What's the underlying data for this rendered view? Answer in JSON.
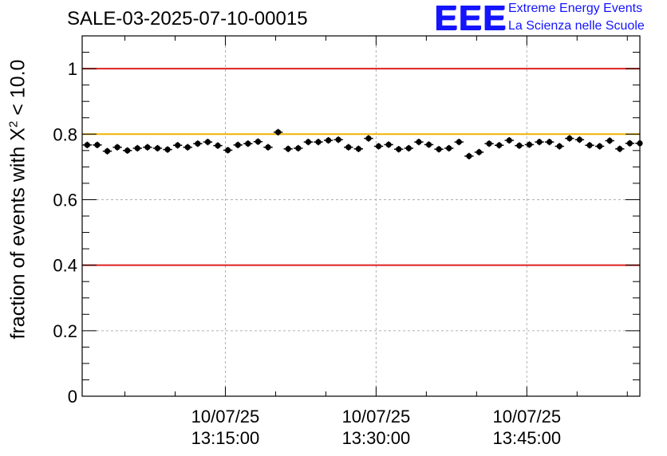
{
  "chart_data": {
    "type": "scatter",
    "title": "SALE-03-2025-07-10-00015",
    "ylabel_prefix": "fraction of events with ",
    "ylabel_symbol": "X",
    "ylabel_power": "2",
    "ylabel_suffix": " < 10.0",
    "xlabel": "",
    "ylim": [
      0,
      1.1
    ],
    "xlim_minutes": [
      0,
      55.5
    ],
    "y_ticks": [
      {
        "value": 0,
        "label": "0"
      },
      {
        "value": 0.2,
        "label": "0.2"
      },
      {
        "value": 0.4,
        "label": "0.4"
      },
      {
        "value": 0.6,
        "label": "0.6"
      },
      {
        "value": 0.8,
        "label": "0.8"
      },
      {
        "value": 1.0,
        "label": "1"
      }
    ],
    "x_ticks": [
      {
        "minute": 14.25,
        "date": "10/07/25",
        "time": "13:15:00"
      },
      {
        "minute": 29.25,
        "date": "10/07/25",
        "time": "13:30:00"
      },
      {
        "minute": 44.25,
        "date": "10/07/25",
        "time": "13:45:00"
      }
    ],
    "reference_lines": [
      {
        "y": 1.0,
        "color": "#e02020"
      },
      {
        "y": 0.8,
        "color": "#f2b400"
      },
      {
        "y": 0.4,
        "color": "#e02020"
      }
    ],
    "grid": true,
    "series": [
      {
        "name": "fraction",
        "color": "#000000",
        "x_minutes": [
          0.5,
          1.5,
          2.5,
          3.5,
          4.5,
          5.5,
          6.5,
          7.5,
          8.5,
          9.5,
          10.5,
          11.5,
          12.5,
          13.5,
          14.5,
          15.5,
          16.5,
          17.5,
          18.5,
          19.5,
          20.5,
          21.5,
          22.5,
          23.5,
          24.5,
          25.5,
          26.5,
          27.5,
          28.5,
          29.5,
          30.5,
          31.5,
          32.5,
          33.5,
          34.5,
          35.5,
          36.5,
          37.5,
          38.5,
          39.5,
          40.5,
          41.5,
          42.5,
          43.5,
          44.5,
          45.5,
          46.5,
          47.5,
          48.5,
          49.5,
          50.5,
          51.5,
          52.5,
          53.5,
          54.5,
          55.5
        ],
        "y": [
          0.767,
          0.767,
          0.748,
          0.76,
          0.75,
          0.757,
          0.76,
          0.757,
          0.753,
          0.766,
          0.76,
          0.771,
          0.776,
          0.765,
          0.751,
          0.767,
          0.771,
          0.777,
          0.76,
          0.806,
          0.755,
          0.757,
          0.776,
          0.776,
          0.781,
          0.783,
          0.76,
          0.755,
          0.787,
          0.763,
          0.768,
          0.754,
          0.757,
          0.776,
          0.768,
          0.754,
          0.757,
          0.776,
          0.733,
          0.745,
          0.771,
          0.766,
          0.781,
          0.765,
          0.768,
          0.776,
          0.776,
          0.763,
          0.787,
          0.783,
          0.766,
          0.763,
          0.78,
          0.755,
          0.772,
          0.772
        ],
        "y_error": 0.01
      }
    ]
  },
  "logo": {
    "mark": "EEE",
    "line1": "Extreme Energy Events",
    "line2": "La Scienza nelle Scuole"
  }
}
